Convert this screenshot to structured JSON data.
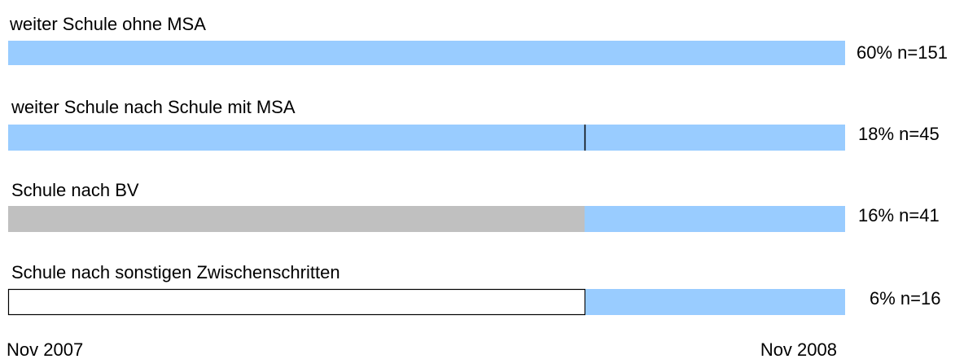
{
  "rows": [
    {
      "label": "weiter Schule ohne MSA",
      "value_label": "60% n=151"
    },
    {
      "label": "weiter Schule nach Schule mit MSA",
      "value_label": "18% n=45"
    },
    {
      "label": "Schule nach BV",
      "value_label": "16% n=41"
    },
    {
      "label": "Schule nach sonstigen Zwischenschritten",
      "value_label": "6% n=16"
    }
  ],
  "axis": {
    "start": "Nov 2007",
    "end": "Nov 2008"
  }
}
